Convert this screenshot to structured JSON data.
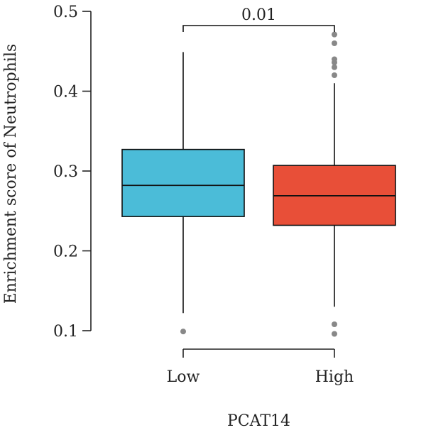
{
  "chart_data": {
    "type": "box",
    "xlabel": "PCAT14",
    "ylabel": "Enrichment score of Neutrophils",
    "ylim": [
      0.09,
      0.5
    ],
    "yticks": [
      0.1,
      0.2,
      0.3,
      0.4,
      0.5
    ],
    "ytick_labels": [
      "0.1",
      "0.2",
      "0.3",
      "0.4",
      "0.5"
    ],
    "categories": [
      "Low",
      "High"
    ],
    "groups": [
      {
        "label": "Low",
        "color": "#4bbcd8",
        "whisker_low": 0.122,
        "q1": 0.243,
        "median": 0.282,
        "q3": 0.327,
        "whisker_high": 0.449,
        "outliers": [
          0.099
        ]
      },
      {
        "label": "High",
        "color": "#e84f38",
        "whisker_low": 0.13,
        "q1": 0.232,
        "median": 0.269,
        "q3": 0.307,
        "whisker_high": 0.41,
        "outliers": [
          0.096,
          0.108,
          0.42,
          0.43,
          0.436,
          0.44,
          0.46,
          0.471
        ]
      }
    ],
    "significance": {
      "label": "0.01",
      "between": [
        "Low",
        "High"
      ]
    },
    "grid": false,
    "legend": "none"
  }
}
